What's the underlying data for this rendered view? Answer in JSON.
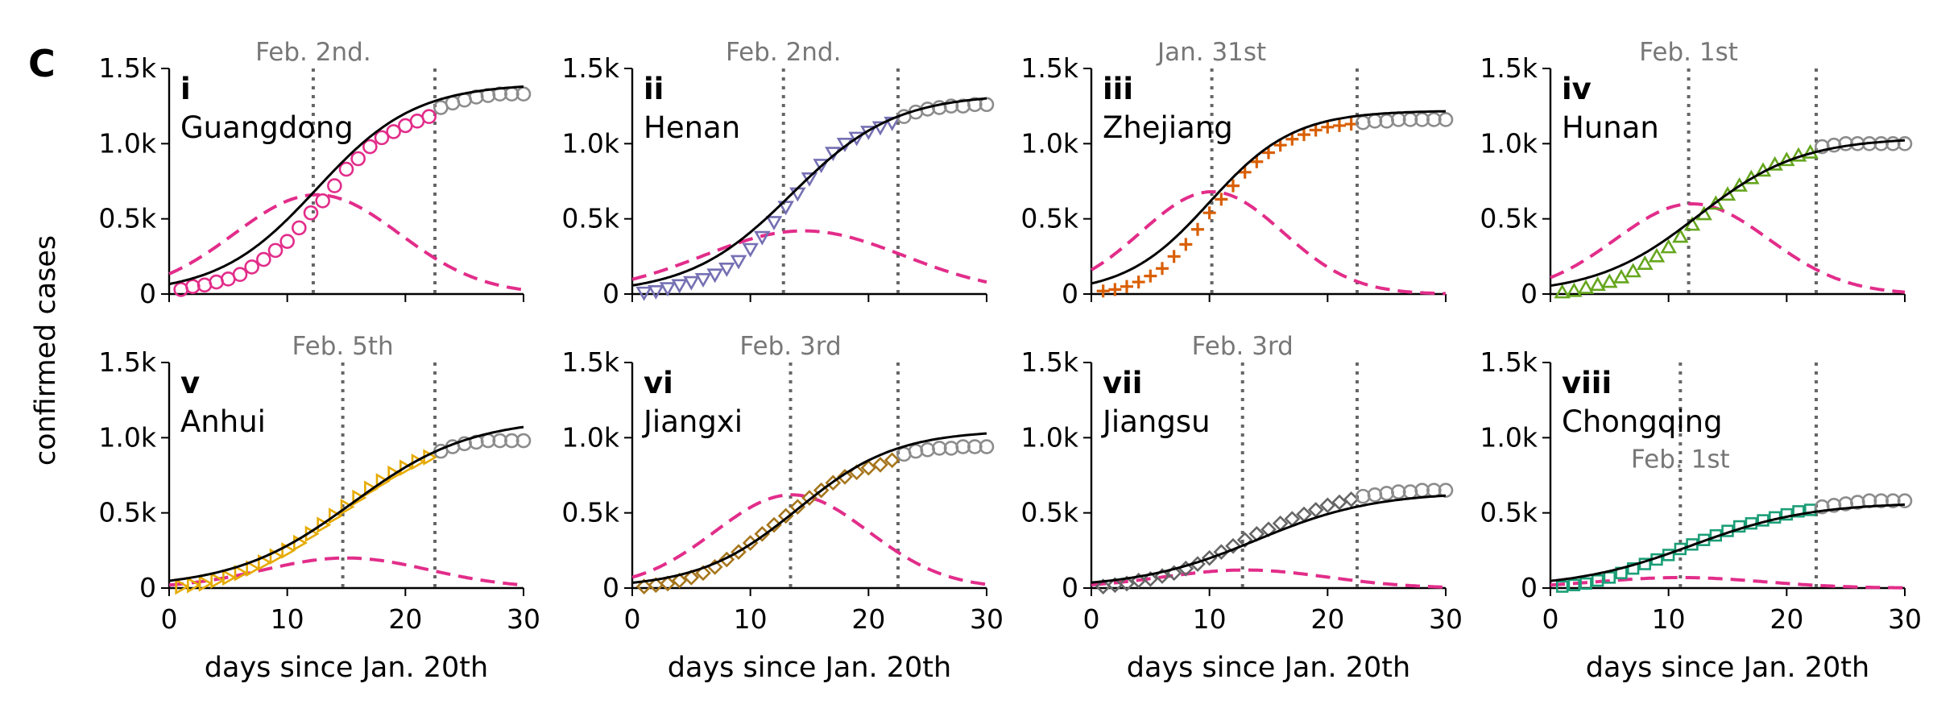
{
  "figure": {
    "panel_letter": "C",
    "ylabel": "confirmed cases",
    "xlabel": "days since Jan. 20th"
  },
  "colors": {
    "fit_line": "#000000",
    "infected_dashed": "#e22d8a",
    "post_data": "#8c8c8c",
    "vline": "#666666",
    "date_label": "#777777"
  },
  "chart_data": [
    {
      "type": "line",
      "numeral": "i",
      "province": "Guangdong",
      "date_label": "Feb. 2nd.",
      "marker": "circle",
      "color": "#e22d8a",
      "xlim": [
        0,
        30
      ],
      "ylim": [
        0,
        1.5
      ],
      "xticks": [
        0,
        10,
        20,
        30
      ],
      "xtick_labels": [
        "0",
        "10",
        "20",
        "30"
      ],
      "yticks": [
        0,
        0.5,
        1.0,
        1.5
      ],
      "ytick_labels": [
        "0",
        "0.5k",
        "1.0k",
        "1.5k"
      ],
      "vlines": [
        12.2,
        22.5
      ],
      "fit": {
        "K": 1.4,
        "r": 0.24,
        "t0": 12.5
      },
      "infected": {
        "A": 0.66,
        "mu": 12.5,
        "sigma": 7.0
      },
      "data_points": [
        [
          1,
          0.03
        ],
        [
          2,
          0.05
        ],
        [
          3,
          0.06
        ],
        [
          4,
          0.08
        ],
        [
          5,
          0.1
        ],
        [
          6,
          0.13
        ],
        [
          7,
          0.18
        ],
        [
          8,
          0.23
        ],
        [
          9,
          0.29
        ],
        [
          10,
          0.35
        ],
        [
          11,
          0.44
        ],
        [
          12,
          0.54
        ],
        [
          13,
          0.62
        ],
        [
          14,
          0.72
        ],
        [
          15,
          0.83
        ],
        [
          16,
          0.9
        ],
        [
          17,
          0.98
        ],
        [
          18,
          1.04
        ],
        [
          19,
          1.08
        ],
        [
          20,
          1.12
        ],
        [
          21,
          1.15
        ],
        [
          22,
          1.18
        ]
      ],
      "post_points": [
        [
          23,
          1.24
        ],
        [
          24,
          1.27
        ],
        [
          25,
          1.29
        ],
        [
          26,
          1.31
        ],
        [
          27,
          1.32
        ],
        [
          28,
          1.33
        ],
        [
          29,
          1.33
        ],
        [
          30,
          1.33
        ]
      ]
    },
    {
      "type": "line",
      "numeral": "ii",
      "province": "Henan",
      "date_label": "Feb. 2nd.",
      "marker": "triangle-down",
      "color": "#7570b3",
      "xlim": [
        0,
        30
      ],
      "ylim": [
        0,
        1.5
      ],
      "xticks": [
        0,
        10,
        20,
        30
      ],
      "xtick_labels": [
        "0",
        "10",
        "20",
        "30"
      ],
      "yticks": [
        0,
        0.5,
        1.0,
        1.5
      ],
      "ytick_labels": [
        "0",
        "0.5k",
        "1.0k",
        "1.5k"
      ],
      "vlines": [
        12.8,
        22.5
      ],
      "fit": {
        "K": 1.33,
        "r": 0.23,
        "t0": 13.5
      },
      "infected": {
        "A": 0.42,
        "mu": 14.5,
        "sigma": 8.5
      },
      "data_points": [
        [
          1,
          0.01
        ],
        [
          2,
          0.02
        ],
        [
          3,
          0.04
        ],
        [
          4,
          0.06
        ],
        [
          5,
          0.08
        ],
        [
          6,
          0.1
        ],
        [
          7,
          0.13
        ],
        [
          8,
          0.17
        ],
        [
          9,
          0.22
        ],
        [
          10,
          0.3
        ],
        [
          11,
          0.38
        ],
        [
          12,
          0.48
        ],
        [
          13,
          0.58
        ],
        [
          14,
          0.67
        ],
        [
          15,
          0.77
        ],
        [
          16,
          0.86
        ],
        [
          17,
          0.94
        ],
        [
          18,
          1.0
        ],
        [
          19,
          1.04
        ],
        [
          20,
          1.08
        ],
        [
          21,
          1.11
        ],
        [
          22,
          1.14
        ]
      ],
      "post_points": [
        [
          23,
          1.18
        ],
        [
          24,
          1.21
        ],
        [
          25,
          1.23
        ],
        [
          26,
          1.24
        ],
        [
          27,
          1.25
        ],
        [
          28,
          1.25
        ],
        [
          29,
          1.26
        ],
        [
          30,
          1.26
        ]
      ]
    },
    {
      "type": "line",
      "numeral": "iii",
      "province": "Zhejiang",
      "date_label": "Jan. 31st",
      "marker": "plus",
      "color": "#d95f02",
      "xlim": [
        0,
        30
      ],
      "ylim": [
        0,
        1.5
      ],
      "xticks": [
        0,
        10,
        20,
        30
      ],
      "xtick_labels": [
        "0",
        "10",
        "20",
        "30"
      ],
      "yticks": [
        0,
        0.5,
        1.0,
        1.5
      ],
      "ytick_labels": [
        "0",
        "0.5k",
        "1.0k",
        "1.5k"
      ],
      "vlines": [
        10.2,
        22.5
      ],
      "fit": {
        "K": 1.22,
        "r": 0.28,
        "t0": 10.0
      },
      "infected": {
        "A": 0.68,
        "mu": 10.2,
        "sigma": 6.0
      },
      "data_points": [
        [
          1,
          0.02
        ],
        [
          2,
          0.03
        ],
        [
          3,
          0.05
        ],
        [
          4,
          0.08
        ],
        [
          5,
          0.12
        ],
        [
          6,
          0.17
        ],
        [
          7,
          0.25
        ],
        [
          8,
          0.33
        ],
        [
          9,
          0.43
        ],
        [
          10,
          0.54
        ],
        [
          11,
          0.63
        ],
        [
          12,
          0.72
        ],
        [
          13,
          0.81
        ],
        [
          14,
          0.88
        ],
        [
          15,
          0.94
        ],
        [
          16,
          0.99
        ],
        [
          17,
          1.03
        ],
        [
          18,
          1.06
        ],
        [
          19,
          1.09
        ],
        [
          20,
          1.11
        ],
        [
          21,
          1.12
        ],
        [
          22,
          1.13
        ]
      ],
      "post_points": [
        [
          23,
          1.14
        ],
        [
          24,
          1.15
        ],
        [
          25,
          1.15
        ],
        [
          26,
          1.16
        ],
        [
          27,
          1.16
        ],
        [
          28,
          1.16
        ],
        [
          29,
          1.16
        ],
        [
          30,
          1.16
        ]
      ]
    },
    {
      "type": "line",
      "numeral": "iv",
      "province": "Hunan",
      "date_label": "Feb. 1st",
      "marker": "triangle-up",
      "color": "#66a61e",
      "xlim": [
        0,
        30
      ],
      "ylim": [
        0,
        1.5
      ],
      "xticks": [
        0,
        10,
        20,
        30
      ],
      "xtick_labels": [
        "0",
        "10",
        "20",
        "30"
      ],
      "yticks": [
        0,
        0.5,
        1.0,
        1.5
      ],
      "ytick_labels": [
        "0",
        "0.5k",
        "1.0k",
        "1.5k"
      ],
      "vlines": [
        11.7,
        22.5
      ],
      "fit": {
        "K": 1.04,
        "r": 0.23,
        "t0": 12.5
      },
      "infected": {
        "A": 0.6,
        "mu": 12.0,
        "sigma": 6.5
      },
      "data_points": [
        [
          1,
          0.01
        ],
        [
          2,
          0.02
        ],
        [
          3,
          0.04
        ],
        [
          4,
          0.06
        ],
        [
          5,
          0.08
        ],
        [
          6,
          0.11
        ],
        [
          7,
          0.15
        ],
        [
          8,
          0.2
        ],
        [
          9,
          0.25
        ],
        [
          10,
          0.31
        ],
        [
          11,
          0.38
        ],
        [
          12,
          0.46
        ],
        [
          13,
          0.53
        ],
        [
          14,
          0.6
        ],
        [
          15,
          0.66
        ],
        [
          16,
          0.72
        ],
        [
          17,
          0.77
        ],
        [
          18,
          0.82
        ],
        [
          19,
          0.86
        ],
        [
          20,
          0.89
        ],
        [
          21,
          0.92
        ],
        [
          22,
          0.94
        ]
      ],
      "post_points": [
        [
          23,
          0.98
        ],
        [
          24,
          0.99
        ],
        [
          25,
          1.0
        ],
        [
          26,
          1.0
        ],
        [
          27,
          1.0
        ],
        [
          28,
          1.0
        ],
        [
          29,
          1.0
        ],
        [
          30,
          1.0
        ]
      ]
    },
    {
      "type": "line",
      "numeral": "v",
      "province": "Anhui",
      "date_label": "Feb. 5th",
      "marker": "triangle-right",
      "color": "#e6ab02",
      "xlim": [
        0,
        30
      ],
      "ylim": [
        0,
        1.5
      ],
      "xticks": [
        0,
        10,
        20,
        30
      ],
      "xtick_labels": [
        "0",
        "10",
        "20",
        "30"
      ],
      "yticks": [
        0,
        0.5,
        1.0,
        1.5
      ],
      "ytick_labels": [
        "0",
        "0.5k",
        "1.0k",
        "1.5k"
      ],
      "vlines": [
        14.7,
        22.5
      ],
      "fit": {
        "K": 1.13,
        "r": 0.2,
        "t0": 15.5
      },
      "infected": {
        "A": 0.2,
        "mu": 15.0,
        "sigma": 7.0
      },
      "data_points": [
        [
          1,
          0.01
        ],
        [
          2,
          0.02
        ],
        [
          3,
          0.03
        ],
        [
          4,
          0.05
        ],
        [
          5,
          0.07
        ],
        [
          6,
          0.1
        ],
        [
          7,
          0.13
        ],
        [
          8,
          0.17
        ],
        [
          9,
          0.21
        ],
        [
          10,
          0.25
        ],
        [
          11,
          0.3
        ],
        [
          12,
          0.36
        ],
        [
          13,
          0.42
        ],
        [
          14,
          0.48
        ],
        [
          15,
          0.54
        ],
        [
          16,
          0.6
        ],
        [
          17,
          0.66
        ],
        [
          18,
          0.71
        ],
        [
          19,
          0.76
        ],
        [
          20,
          0.8
        ],
        [
          21,
          0.84
        ],
        [
          22,
          0.87
        ]
      ],
      "post_points": [
        [
          23,
          0.91
        ],
        [
          24,
          0.94
        ],
        [
          25,
          0.96
        ],
        [
          26,
          0.97
        ],
        [
          27,
          0.98
        ],
        [
          28,
          0.98
        ],
        [
          29,
          0.98
        ],
        [
          30,
          0.98
        ]
      ]
    },
    {
      "type": "line",
      "numeral": "vi",
      "province": "Jiangxi",
      "date_label": "Feb. 3rd",
      "marker": "diamond",
      "color": "#a6761d",
      "xlim": [
        0,
        30
      ],
      "ylim": [
        0,
        1.5
      ],
      "xticks": [
        0,
        10,
        20,
        30
      ],
      "xtick_labels": [
        "0",
        "10",
        "20",
        "30"
      ],
      "yticks": [
        0,
        0.5,
        1.0,
        1.5
      ],
      "ytick_labels": [
        "0",
        "0.5k",
        "1.0k",
        "1.5k"
      ],
      "vlines": [
        13.4,
        22.5
      ],
      "fit": {
        "K": 1.05,
        "r": 0.24,
        "t0": 14.0
      },
      "infected": {
        "A": 0.62,
        "mu": 13.5,
        "sigma": 6.5
      },
      "data_points": [
        [
          1,
          0.01
        ],
        [
          2,
          0.02
        ],
        [
          3,
          0.03
        ],
        [
          4,
          0.05
        ],
        [
          5,
          0.07
        ],
        [
          6,
          0.1
        ],
        [
          7,
          0.14
        ],
        [
          8,
          0.19
        ],
        [
          9,
          0.24
        ],
        [
          10,
          0.3
        ],
        [
          11,
          0.36
        ],
        [
          12,
          0.42
        ],
        [
          13,
          0.48
        ],
        [
          14,
          0.54
        ],
        [
          15,
          0.6
        ],
        [
          16,
          0.65
        ],
        [
          17,
          0.7
        ],
        [
          18,
          0.74
        ],
        [
          19,
          0.77
        ],
        [
          20,
          0.8
        ],
        [
          21,
          0.82
        ],
        [
          22,
          0.85
        ]
      ],
      "post_points": [
        [
          23,
          0.89
        ],
        [
          24,
          0.91
        ],
        [
          25,
          0.92
        ],
        [
          26,
          0.93
        ],
        [
          27,
          0.93
        ],
        [
          28,
          0.94
        ],
        [
          29,
          0.94
        ],
        [
          30,
          0.94
        ]
      ]
    },
    {
      "type": "line",
      "numeral": "vii",
      "province": "Jiangsu",
      "date_label": "Feb. 3rd",
      "marker": "diamond",
      "color": "#666666",
      "xlim": [
        0,
        30
      ],
      "ylim": [
        0,
        1.5
      ],
      "xticks": [
        0,
        10,
        20,
        30
      ],
      "xtick_labels": [
        "0",
        "10",
        "20",
        "30"
      ],
      "yticks": [
        0,
        0.5,
        1.0,
        1.5
      ],
      "ytick_labels": [
        "0",
        "0.5k",
        "1.0k",
        "1.5k"
      ],
      "vlines": [
        12.8,
        22.5
      ],
      "fit": {
        "K": 0.64,
        "r": 0.2,
        "t0": 14.0
      },
      "infected": {
        "A": 0.12,
        "mu": 13.0,
        "sigma": 7.0
      },
      "data_points": [
        [
          1,
          0.01
        ],
        [
          2,
          0.02
        ],
        [
          3,
          0.03
        ],
        [
          4,
          0.05
        ],
        [
          5,
          0.06
        ],
        [
          6,
          0.08
        ],
        [
          7,
          0.1
        ],
        [
          8,
          0.13
        ],
        [
          9,
          0.16
        ],
        [
          10,
          0.2
        ],
        [
          11,
          0.24
        ],
        [
          12,
          0.28
        ],
        [
          13,
          0.32
        ],
        [
          14,
          0.36
        ],
        [
          15,
          0.39
        ],
        [
          16,
          0.43
        ],
        [
          17,
          0.46
        ],
        [
          18,
          0.49
        ],
        [
          19,
          0.52
        ],
        [
          20,
          0.55
        ],
        [
          21,
          0.57
        ],
        [
          22,
          0.59
        ]
      ],
      "post_points": [
        [
          23,
          0.61
        ],
        [
          24,
          0.62
        ],
        [
          25,
          0.63
        ],
        [
          26,
          0.64
        ],
        [
          27,
          0.64
        ],
        [
          28,
          0.65
        ],
        [
          29,
          0.65
        ],
        [
          30,
          0.65
        ]
      ]
    },
    {
      "type": "line",
      "numeral": "viii",
      "province": "Chongqing",
      "date_label": "Feb. 1st",
      "marker": "square",
      "color": "#1b9e77",
      "xlim": [
        0,
        30
      ],
      "ylim": [
        0,
        1.5
      ],
      "xticks": [
        0,
        10,
        20,
        30
      ],
      "xtick_labels": [
        "0",
        "10",
        "20",
        "30"
      ],
      "yticks": [
        0,
        0.5,
        1.0,
        1.5
      ],
      "ytick_labels": [
        "0",
        "0.5k",
        "1.0k",
        "1.5k"
      ],
      "vlines": [
        11.0,
        22.5
      ],
      "fit": {
        "K": 0.57,
        "r": 0.2,
        "t0": 12.0
      },
      "infected": {
        "A": 0.07,
        "mu": 11.0,
        "sigma": 7.0
      },
      "data_points": [
        [
          1,
          0.01
        ],
        [
          2,
          0.02
        ],
        [
          3,
          0.03
        ],
        [
          4,
          0.05
        ],
        [
          5,
          0.07
        ],
        [
          6,
          0.1
        ],
        [
          7,
          0.13
        ],
        [
          8,
          0.16
        ],
        [
          9,
          0.19
        ],
        [
          10,
          0.22
        ],
        [
          11,
          0.26
        ],
        [
          12,
          0.29
        ],
        [
          13,
          0.32
        ],
        [
          14,
          0.35
        ],
        [
          15,
          0.38
        ],
        [
          16,
          0.41
        ],
        [
          17,
          0.43
        ],
        [
          18,
          0.45
        ],
        [
          19,
          0.47
        ],
        [
          20,
          0.49
        ],
        [
          21,
          0.51
        ],
        [
          22,
          0.52
        ]
      ],
      "post_points": [
        [
          23,
          0.54
        ],
        [
          24,
          0.55
        ],
        [
          25,
          0.56
        ],
        [
          26,
          0.57
        ],
        [
          27,
          0.58
        ],
        [
          28,
          0.58
        ],
        [
          29,
          0.58
        ],
        [
          30,
          0.58
        ]
      ]
    }
  ]
}
